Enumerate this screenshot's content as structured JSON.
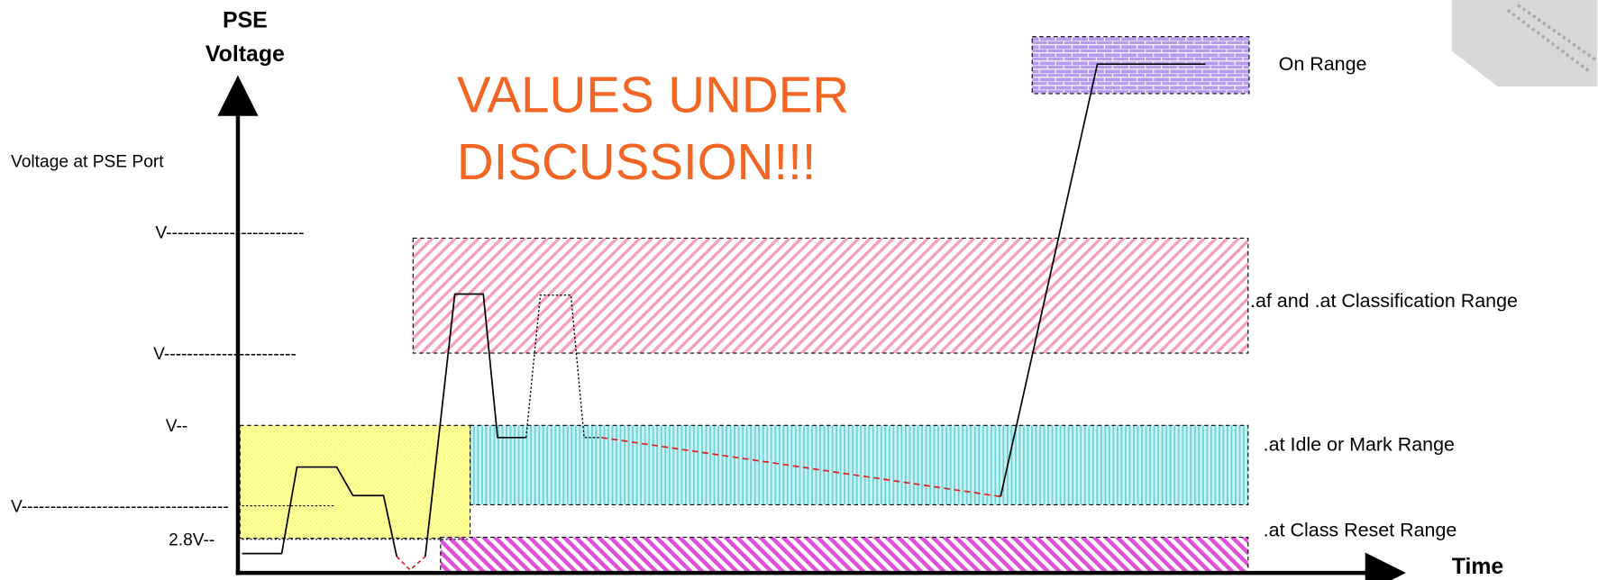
{
  "axis": {
    "y_title": [
      "PSE",
      "Voltage"
    ],
    "y_subtitle": "Voltage at PSE Port",
    "x_title": "Time"
  },
  "annotation": [
    "VALUES UNDER",
    "DISCUSSION!!!"
  ],
  "levels": [
    "V------------------------",
    "V-----------------------",
    "V--",
    "V------------------------------------",
    "2.8V--"
  ],
  "ranges": [
    {
      "label": "On Range"
    },
    {
      "label": ".af and .at Classification Range"
    },
    {
      "label": ".at Idle or Mark Range"
    },
    {
      "label": ".at Class Reset Range"
    }
  ]
}
